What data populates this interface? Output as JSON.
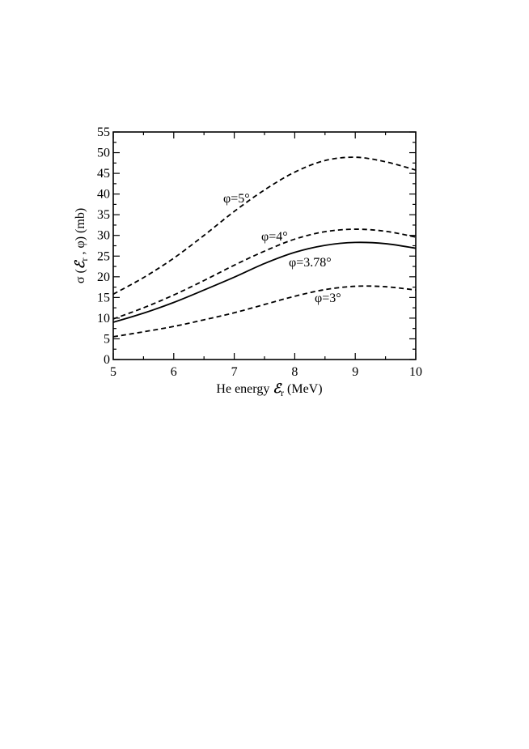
{
  "chart_data": {
    "type": "line",
    "title": "",
    "xlabel": {
      "prefix": "He energy ",
      "symbol": "ℰ",
      "subscript": "r",
      "suffix": " (MeV)"
    },
    "ylabel": {
      "prefix": "σ (",
      "symbol": "ℰ",
      "subscript": "r",
      "suffix": " , φ) (mb)"
    },
    "xlim": [
      5,
      10
    ],
    "ylim": [
      0,
      55
    ],
    "xticks": [
      "5",
      "6",
      "7",
      "8",
      "9",
      "10"
    ],
    "yticks": [
      "0",
      "5",
      "10",
      "15",
      "20",
      "25",
      "30",
      "35",
      "40",
      "45",
      "50",
      "55"
    ],
    "grid": false,
    "x": [
      5,
      5.5,
      6,
      6.5,
      7,
      7.5,
      8,
      8.5,
      9,
      9.5,
      10
    ],
    "series": [
      {
        "name": "φ=5°",
        "style": "dashed",
        "values": [
          15.8,
          19.8,
          24.5,
          30.0,
          35.8,
          41.0,
          45.3,
          48.1,
          48.9,
          47.8,
          45.8
        ]
      },
      {
        "name": "φ=4°",
        "style": "dashed",
        "values": [
          9.8,
          12.5,
          15.6,
          19.1,
          22.8,
          26.2,
          29.1,
          30.9,
          31.5,
          31.0,
          29.6
        ]
      },
      {
        "name": "φ=3.78°",
        "style": "solid",
        "values": [
          9.0,
          11.2,
          13.8,
          16.8,
          19.9,
          23.2,
          25.9,
          27.6,
          28.3,
          28.0,
          26.9
        ]
      },
      {
        "name": "φ=3°",
        "style": "dashed",
        "values": [
          5.5,
          6.7,
          8.0,
          9.6,
          11.3,
          13.3,
          15.3,
          16.9,
          17.7,
          17.6,
          16.8
        ]
      }
    ]
  }
}
